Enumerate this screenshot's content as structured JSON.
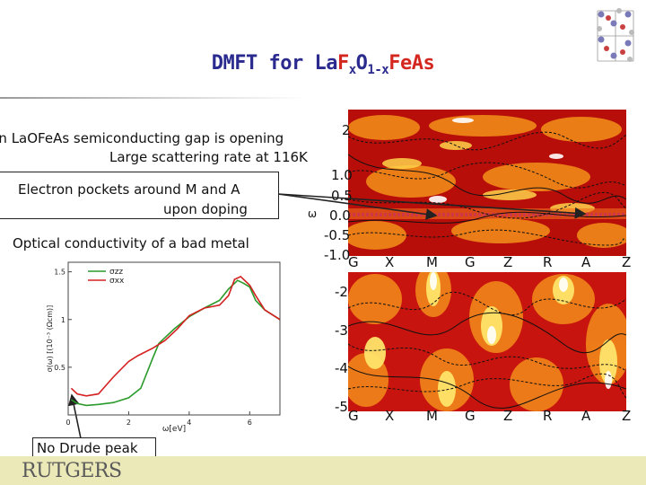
{
  "title": {
    "prefix": "DMFT for La",
    "f": "F",
    "sub_x": "x",
    "o": "O",
    "sub_1x": "1-x",
    "suffix": "FeAs"
  },
  "bullets": {
    "gap_line1": "In LaOFeAs semiconducting gap is opening",
    "gap_line2": "Large scattering rate at 116K",
    "pockets_line1": "Electron pockets around M and A",
    "pockets_line2": "upon doping",
    "optical": "Optical conductivity of a bad metal",
    "no_drude": "No Drude peak"
  },
  "bands": {
    "kpoints": [
      "G",
      "X",
      "M",
      "G",
      "Z",
      "R",
      "A",
      "Z"
    ],
    "top_yticks": [
      "2",
      "1.0",
      "0.5",
      "0.0",
      "-0.5",
      "-1.0"
    ],
    "bottom_yticks": [
      "-2",
      "-3",
      "-4",
      "-5"
    ],
    "omega_label": "ω"
  },
  "footer": {
    "logo": "RUTGERS"
  },
  "chart_data": {
    "type": "line",
    "ylabel": "σ(ω) [(10⁻³ (Ωcm)]",
    "xlabel": "ω[eV]",
    "xlim": [
      0,
      7
    ],
    "ylim": [
      0,
      1.6
    ],
    "xticks": [
      "0",
      "2",
      "4",
      "6"
    ],
    "yticks": [
      "0.5",
      "1",
      "1.5"
    ],
    "legend": [
      "σzz",
      "σxx"
    ],
    "series": [
      {
        "name": "σzz",
        "color": "#2a9a2a",
        "x": [
          0.1,
          0.3,
          0.6,
          1.0,
          1.5,
          2.0,
          2.4,
          2.8,
          3.0,
          3.5,
          4.0,
          4.5,
          5.0,
          5.3,
          5.6,
          5.8,
          6.0,
          6.2,
          6.5,
          7.0
        ],
        "y": [
          0.16,
          0.12,
          0.1,
          0.11,
          0.13,
          0.18,
          0.28,
          0.6,
          0.75,
          0.9,
          1.03,
          1.12,
          1.2,
          1.32,
          1.41,
          1.38,
          1.34,
          1.2,
          1.1,
          1.0
        ]
      },
      {
        "name": "σxx",
        "color": "#d42020",
        "x": [
          0.1,
          0.3,
          0.6,
          1.0,
          1.5,
          2.0,
          2.3,
          2.8,
          3.2,
          3.6,
          4.0,
          4.5,
          5.0,
          5.3,
          5.5,
          5.7,
          6.0,
          6.2,
          6.5,
          7.0
        ],
        "y": [
          0.28,
          0.22,
          0.2,
          0.22,
          0.4,
          0.56,
          0.62,
          0.7,
          0.78,
          0.9,
          1.04,
          1.12,
          1.15,
          1.25,
          1.42,
          1.45,
          1.36,
          1.25,
          1.1,
          1.0
        ]
      }
    ]
  }
}
